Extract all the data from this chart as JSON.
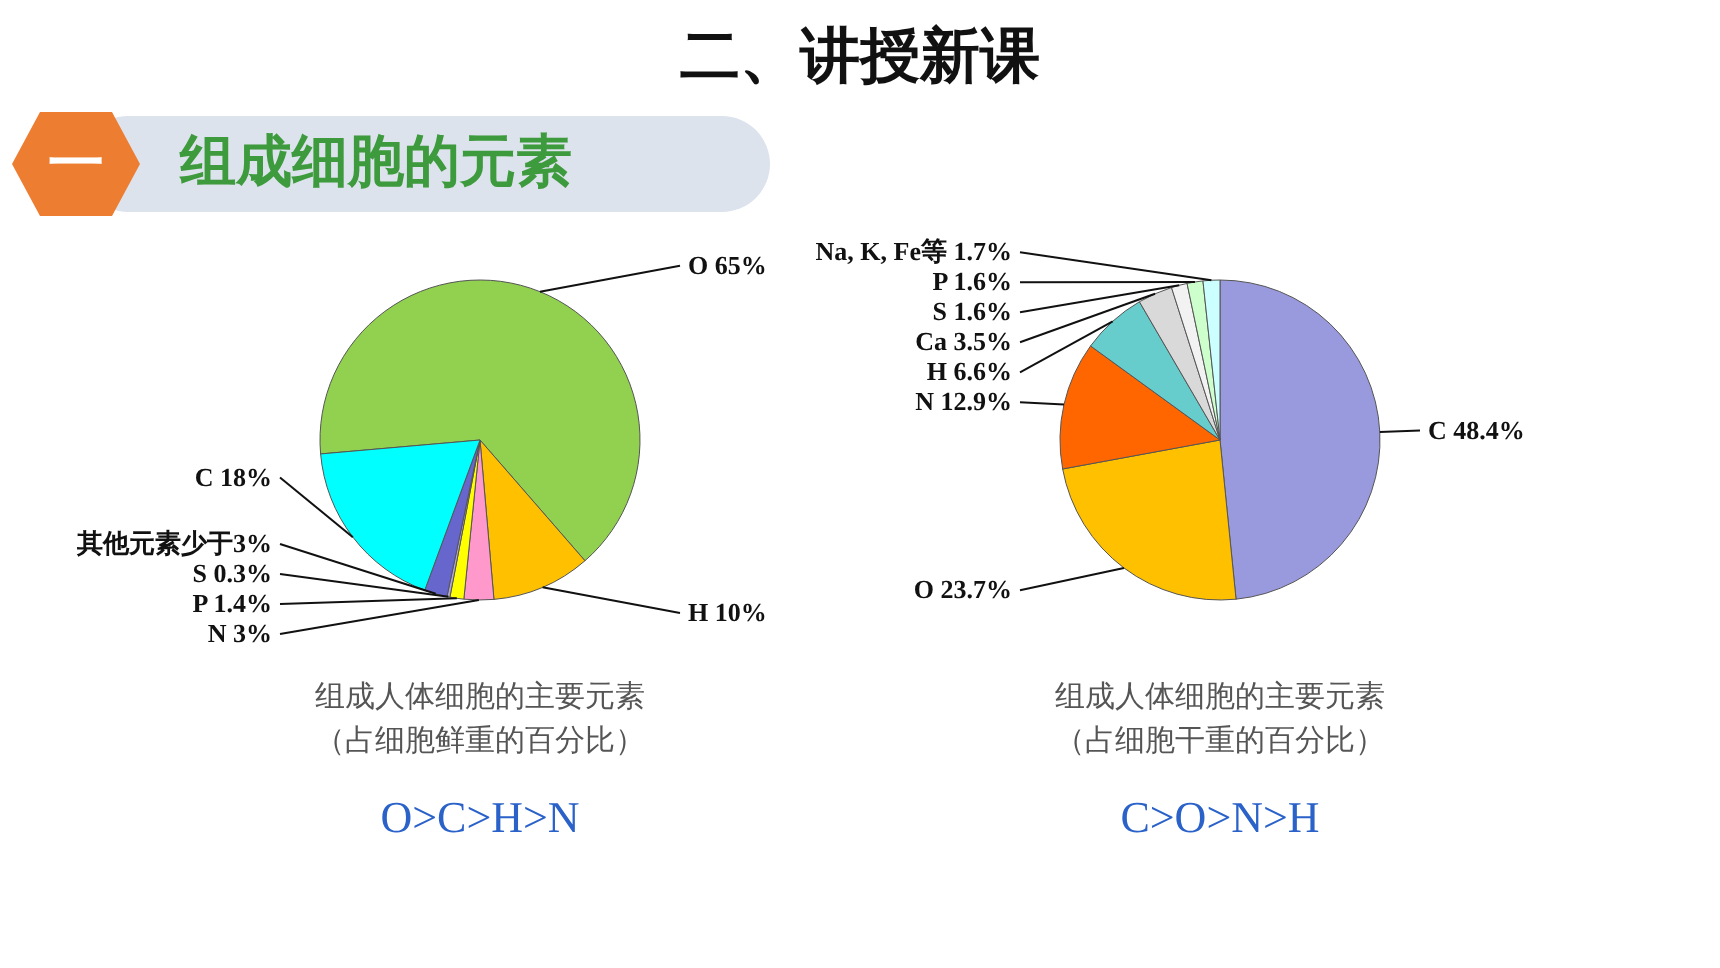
{
  "chart_data": [
    {
      "type": "pie",
      "title": "二、讲授新课",
      "subtitle": "组成细胞的元素",
      "categories": [
        "O 65%",
        "H 10%",
        "N 3%",
        "P 1.4%",
        "S 0.3%",
        "其他元素少于3%",
        "C 18%"
      ],
      "values": [
        65,
        10,
        3,
        1.4,
        0.3,
        2.3,
        18
      ],
      "colors": [
        "#92d050",
        "#ffc000",
        "#ff99cc",
        "#ffff00",
        "#b4a7d6",
        "#6666cc",
        "#00ffff"
      ],
      "annotations": [
        "一",
        "组成人体细胞的主要元素",
        "（占细胞鲜重的百分比）",
        "O>C>H>N"
      ]
    },
    {
      "type": "pie",
      "categories": [
        "C 48.4%",
        "O 23.7%",
        "N 12.9%",
        "H 6.6%",
        "Ca 3.5%",
        "S 1.6%",
        "P 1.6%",
        "Na, K, Fe等 1.7%"
      ],
      "values": [
        48.4,
        23.7,
        12.9,
        6.6,
        3.5,
        1.6,
        1.6,
        1.7
      ],
      "colors": [
        "#9999dd",
        "#ffc000",
        "#ff6600",
        "#66cccc",
        "#d9d9d9",
        "#f2f2f2",
        "#ccffcc",
        "#ccffff"
      ],
      "annotations": [
        "组成人体细胞的主要元素",
        "（占细胞干重的百分比）",
        "C>O>N>H"
      ]
    }
  ]
}
